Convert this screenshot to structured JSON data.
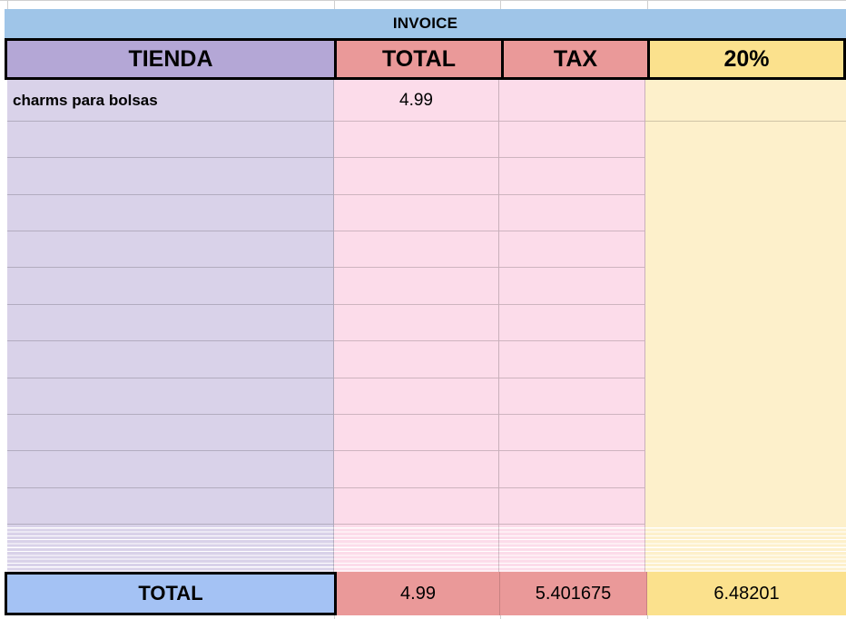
{
  "title": "INVOICE",
  "header": {
    "tienda": "TIENDA",
    "total": "TOTAL",
    "tax": "TAX",
    "pct": "20%"
  },
  "rows": [
    {
      "tienda": "charms para bolsas",
      "total": "4.99",
      "tax": "",
      "pct": ""
    }
  ],
  "empty_row_count": 11,
  "footer": {
    "label": "TOTAL",
    "total": "4.99",
    "tax": "5.401675",
    "pct": "6.48201"
  },
  "colors": {
    "invoice_bar_blue": "#9fc5e8",
    "header_purple": "#b4a7d6",
    "header_salmon": "#ea9999",
    "header_yellow": "#fbe18d",
    "body_purple": "#d9d2e9",
    "body_pink": "#fcdcea",
    "body_yellow": "#fdf0cb",
    "footer_blue": "#a4c2f4",
    "border_black": "#000000"
  }
}
